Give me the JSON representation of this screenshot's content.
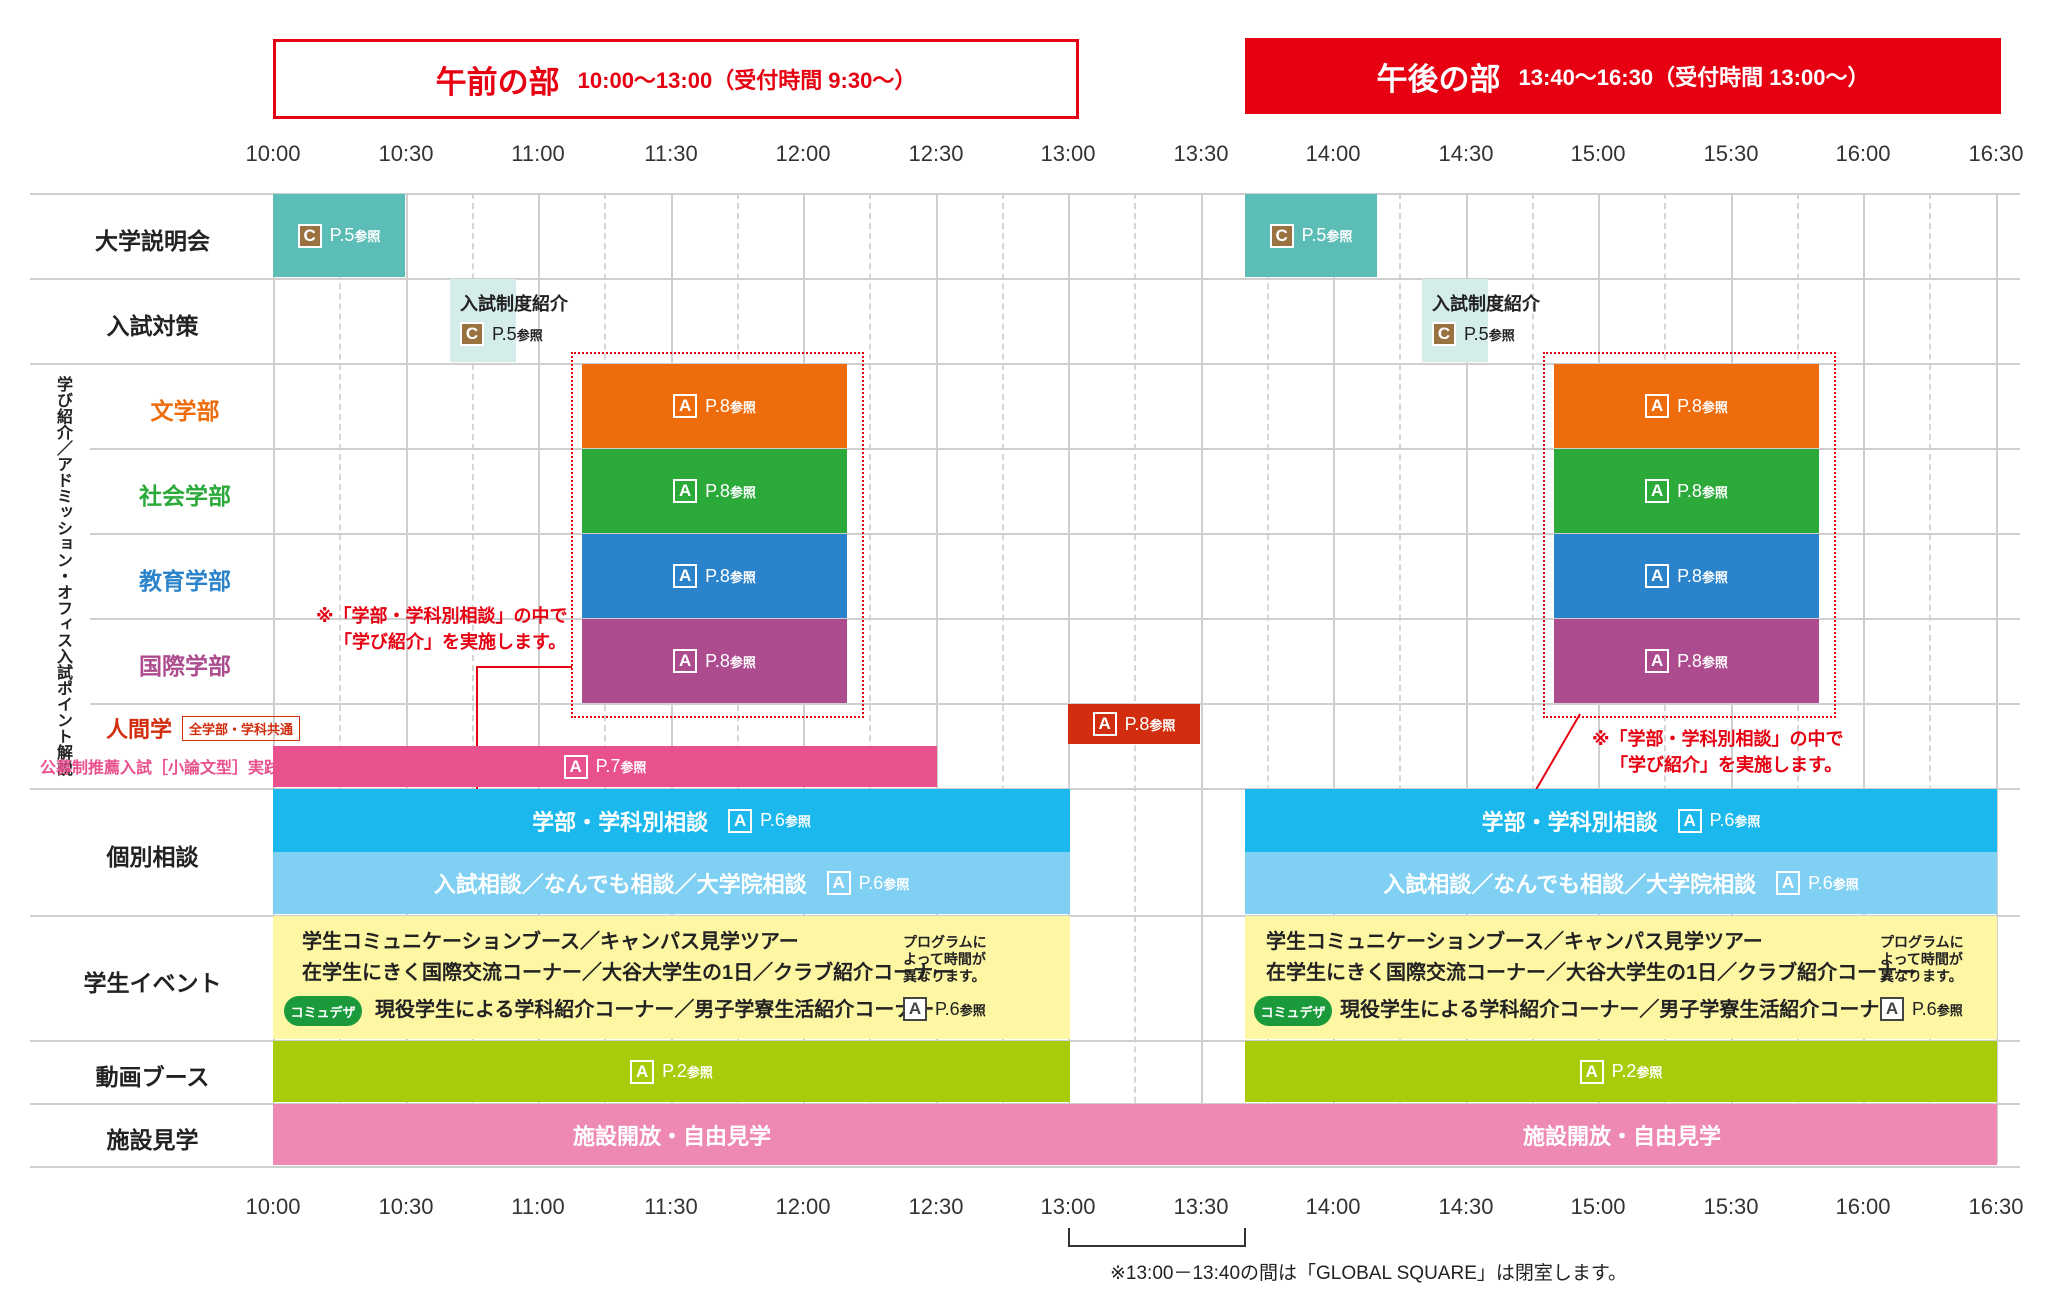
{
  "header": {
    "am_title": "午前の部",
    "am_time": "10:00〜13:00（受付時間 9:30〜）",
    "pm_title": "午後の部",
    "pm_time": "13:40〜16:30（受付時間 13:00〜）"
  },
  "times": [
    "10:00",
    "10:30",
    "11:00",
    "11:30",
    "12:00",
    "12:30",
    "13:00",
    "13:30",
    "14:00",
    "14:30",
    "15:00",
    "15:30",
    "16:00",
    "16:30"
  ],
  "rows": {
    "setsumeikai": "大学説明会",
    "nyushi": "入試対策",
    "manabi_side": "学び紹介／アドミッション・オフィス入試ポイント解説",
    "bungaku": "文学部",
    "shakai": "社会学部",
    "kyoiku": "教育学部",
    "kokusai": "国際学部",
    "ningen": "人間学",
    "ningen_tag": "全学部・学科共通",
    "koubo": "公募制推薦入試［小論文型］実践講座",
    "kobetsu": "個別相談",
    "event": "学生イベント",
    "douga": "動画ブース",
    "shisetsu": "施設見学"
  },
  "badges": {
    "a": "A",
    "c": "C"
  },
  "refs": {
    "p5": "P.5",
    "p6": "P.6",
    "p7": "P.7",
    "p8": "P.8",
    "p2": "P.2",
    "sansho": "参照"
  },
  "labels": {
    "nyushi_seido": "入試制度紹介",
    "gakubu_soudan": "学部・学科別相談",
    "nyushi_soudan": "入試相談／なんでも相談／大学院相談",
    "event_line1": "学生コミュニケーションブース／キャンパス見学ツアー",
    "event_line2": "在学生にきく国際交流コーナー／大谷大学生の1日／クラブ紹介コーナー",
    "event_line3": "現役学生による学科紹介コーナー／男子学寮生活紹介コーナー",
    "komyudeza": "コミュデザ",
    "program_note_1": "プログラムに",
    "program_note_2": "よって時間が",
    "program_note_3": "異なります。",
    "shisetsu_text": "施設開放・自由見学",
    "note_line1": "※「学部・学科別相談」の中で",
    "note_line2": "「学び紹介」を実施します。",
    "bottom_note": "※13:00－13:40の間は「GLOBAL SQUARE」は閉室します。"
  },
  "colors": {
    "red": "#e60012",
    "teal": "#5bbdb5",
    "lightteal": "#d4ecea",
    "orange": "#ee6c0c",
    "green": "#2baa3a",
    "blue": "#2a83cb",
    "purple": "#ad4b8f",
    "darkred": "#d12d0e",
    "pink": "#e8508e",
    "cyan": "#1ab8ec",
    "lightcyan": "#7fd0f3",
    "yellow": "#fdf6a3",
    "lime": "#a9cc0a",
    "lightpink": "#ed89b3"
  }
}
